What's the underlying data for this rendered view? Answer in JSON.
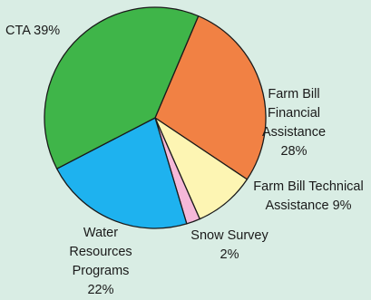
{
  "chart_data": {
    "type": "pie",
    "slices": [
      {
        "label": "Farm Bill Financial Assistance",
        "value": 28,
        "color": "#f18144"
      },
      {
        "label": "Farm Bill Technical Assistance",
        "value": 9,
        "color": "#fdf5b3"
      },
      {
        "label": "Snow Survey",
        "value": 2,
        "color": "#f5b8d8"
      },
      {
        "label": "Water Resources Programs",
        "value": 22,
        "color": "#1eb2ef"
      },
      {
        "label": "CTA",
        "value": 39,
        "color": "#3fb549"
      }
    ],
    "labels": {
      "cta": [
        "CTA 39%"
      ],
      "ffa": [
        "Farm Bill",
        "Financial",
        "Assistance",
        "28%"
      ],
      "fta": [
        "Farm Bill Technical",
        "Assistance 9%"
      ],
      "snow": [
        "Snow Survey",
        "2%"
      ],
      "water": [
        "Water",
        "Resources",
        "Programs",
        "22%"
      ]
    }
  }
}
